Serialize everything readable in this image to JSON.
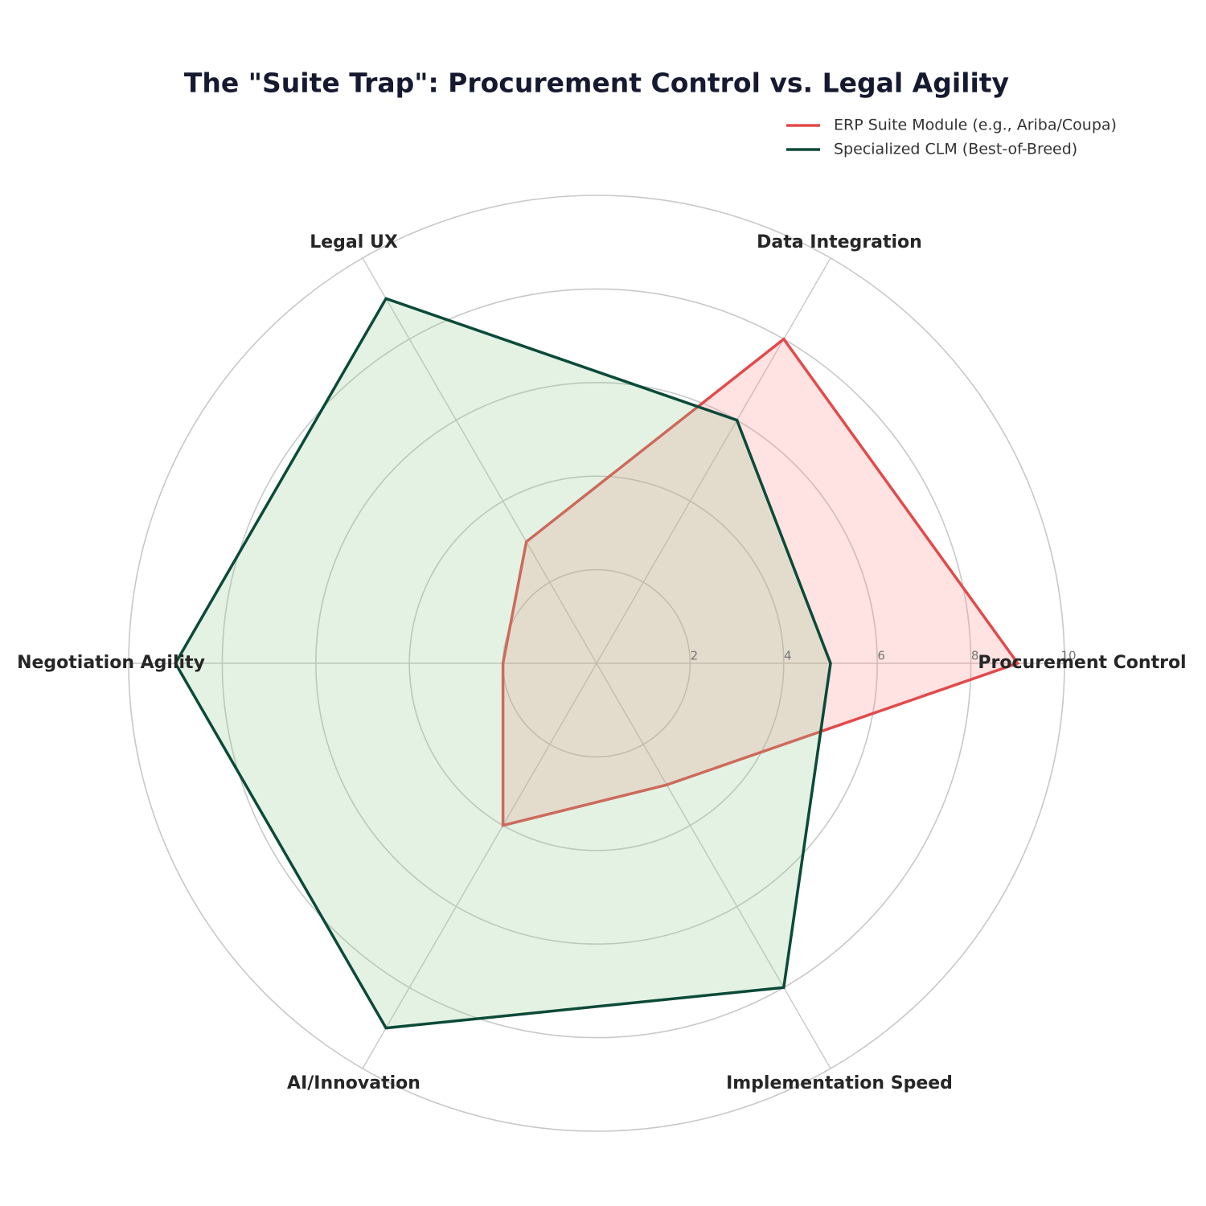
{
  "chart_data": {
    "type": "radar",
    "title": "The \"Suite Trap\": Procurement Control vs. Legal Agility",
    "categories": [
      "Procurement Control",
      "Data Integration",
      "Legal UX",
      "Negotiation Agility",
      "AI/Innovation",
      "Implementation Speed"
    ],
    "series": [
      {
        "name": "ERP Suite Module (e.g., Ariba/Coupa)",
        "color": "#e24a4a",
        "fill_color": "#ff8a8a",
        "values": [
          9,
          8,
          3,
          2,
          4,
          3
        ]
      },
      {
        "name": "Specialized CLM (Best-of-Breed)",
        "color": "#0b4a38",
        "fill_color": "#8fcc8f",
        "values": [
          5,
          6,
          9,
          9,
          9,
          8
        ]
      }
    ],
    "ylim": [
      0,
      10
    ],
    "yticks": [
      2,
      4,
      6,
      8,
      10
    ],
    "grid": true,
    "legend": "upper right"
  }
}
